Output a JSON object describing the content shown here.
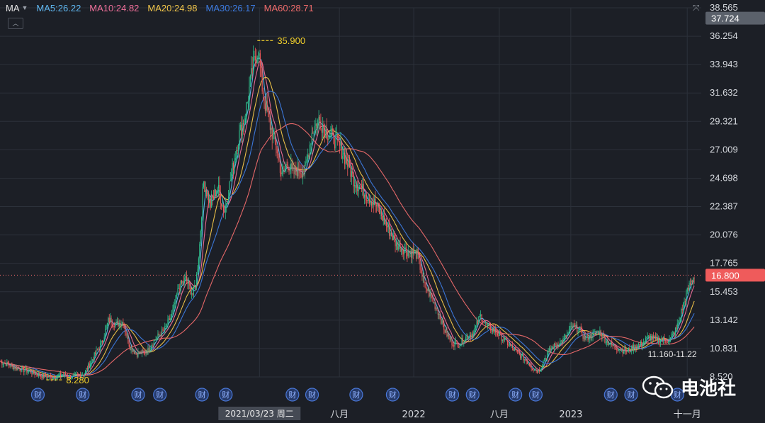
{
  "indicator": {
    "name": "MA",
    "items": [
      {
        "label": "MA5:26.22",
        "color": "#5fb7f0"
      },
      {
        "label": "MA10:24.82",
        "color": "#f06f9a"
      },
      {
        "label": "MA20:24.98",
        "color": "#f3c74a"
      },
      {
        "label": "MA30:26.17",
        "color": "#3d7be0"
      },
      {
        "label": "MA60:28.71",
        "color": "#ef6b6b"
      }
    ]
  },
  "watermark": {
    "text": "电池社",
    "icon": "wechat-icon"
  },
  "chart_data": {
    "type": "candlestick",
    "y_axis": {
      "ticks": [
        "38.565",
        "36.254",
        "33.943",
        "31.632",
        "29.321",
        "27.009",
        "24.698",
        "22.387",
        "20.076",
        "17.765",
        "15.453",
        "13.142",
        "10.831",
        "8.520"
      ],
      "range": [
        8.52,
        38.565
      ],
      "position": "right"
    },
    "y_tick_values": [
      38.565,
      36.254,
      33.943,
      31.632,
      29.321,
      27.009,
      24.698,
      22.387,
      20.076,
      17.765,
      15.453,
      13.142,
      10.831,
      8.52
    ],
    "price_tags": [
      {
        "label": "37.724",
        "value": 37.724,
        "style": "gray"
      },
      {
        "label": "16.800",
        "value": 16.8,
        "style": "red"
      }
    ],
    "x_axis": {
      "labels": [
        {
          "label": "2021/03/23 周二",
          "t": 0.37,
          "highlight": true
        },
        {
          "label": "八月",
          "t": 0.484
        },
        {
          "label": "2022",
          "t": 0.59
        },
        {
          "label": "八月",
          "t": 0.712
        },
        {
          "label": "2023",
          "t": 0.814
        },
        {
          "label": "十一月",
          "t": 0.98
        }
      ]
    },
    "annotations": [
      {
        "label": "35.900",
        "value": 35.9,
        "t": 0.367,
        "kind": "high"
      },
      {
        "label": "8.280",
        "value": 8.28,
        "t": 0.066,
        "kind": "low"
      },
      {
        "label": "11.160-11.22",
        "value": 11.16,
        "t": 0.94,
        "kind": "range"
      }
    ],
    "earnings_markers": {
      "label": "财",
      "t": [
        0.054,
        0.118,
        0.197,
        0.228,
        0.288,
        0.322,
        0.417,
        0.445,
        0.508,
        0.56,
        0.645,
        0.674,
        0.735,
        0.764,
        0.871,
        0.9,
        0.966
      ]
    },
    "close_series": [
      [
        0.0,
        9.8
      ],
      [
        0.02,
        9.3
      ],
      [
        0.04,
        9.0
      ],
      [
        0.06,
        8.6
      ],
      [
        0.075,
        8.5
      ],
      [
        0.09,
        8.7
      ],
      [
        0.105,
        8.5
      ],
      [
        0.12,
        8.8
      ],
      [
        0.13,
        9.8
      ],
      [
        0.145,
        11.3
      ],
      [
        0.155,
        13.2
      ],
      [
        0.165,
        12.8
      ],
      [
        0.175,
        13.0
      ],
      [
        0.185,
        11.0
      ],
      [
        0.195,
        10.4
      ],
      [
        0.21,
        10.6
      ],
      [
        0.22,
        11.5
      ],
      [
        0.235,
        12.4
      ],
      [
        0.245,
        13.5
      ],
      [
        0.255,
        15.8
      ],
      [
        0.265,
        16.5
      ],
      [
        0.275,
        15.2
      ],
      [
        0.28,
        16.5
      ],
      [
        0.285,
        19.5
      ],
      [
        0.29,
        24.5
      ],
      [
        0.3,
        22.5
      ],
      [
        0.31,
        24.0
      ],
      [
        0.32,
        22.0
      ],
      [
        0.33,
        25.0
      ],
      [
        0.34,
        28.0
      ],
      [
        0.35,
        30.0
      ],
      [
        0.36,
        33.5
      ],
      [
        0.368,
        35.4
      ],
      [
        0.375,
        31.5
      ],
      [
        0.385,
        29.0
      ],
      [
        0.395,
        27.0
      ],
      [
        0.402,
        24.8
      ],
      [
        0.41,
        26.0
      ],
      [
        0.418,
        25.0
      ],
      [
        0.425,
        25.5
      ],
      [
        0.435,
        25.2
      ],
      [
        0.445,
        28.5
      ],
      [
        0.455,
        29.5
      ],
      [
        0.465,
        28.5
      ],
      [
        0.475,
        28.0
      ],
      [
        0.485,
        27.2
      ],
      [
        0.495,
        26.0
      ],
      [
        0.505,
        24.5
      ],
      [
        0.52,
        23.5
      ],
      [
        0.535,
        22.6
      ],
      [
        0.55,
        21.0
      ],
      [
        0.565,
        19.3
      ],
      [
        0.58,
        18.8
      ],
      [
        0.595,
        18.5
      ],
      [
        0.605,
        16.0
      ],
      [
        0.615,
        15.0
      ],
      [
        0.625,
        13.8
      ],
      [
        0.635,
        12.2
      ],
      [
        0.645,
        11.3
      ],
      [
        0.655,
        11.2
      ],
      [
        0.665,
        11.8
      ],
      [
        0.675,
        12.1
      ],
      [
        0.685,
        13.5
      ],
      [
        0.695,
        12.6
      ],
      [
        0.705,
        12.3
      ],
      [
        0.72,
        11.5
      ],
      [
        0.735,
        10.6
      ],
      [
        0.75,
        9.9
      ],
      [
        0.76,
        9.2
      ],
      [
        0.768,
        9.0
      ],
      [
        0.775,
        9.8
      ],
      [
        0.785,
        10.8
      ],
      [
        0.795,
        11.2
      ],
      [
        0.805,
        11.6
      ],
      [
        0.815,
        12.6
      ],
      [
        0.825,
        12.4
      ],
      [
        0.835,
        11.6
      ],
      [
        0.845,
        12.0
      ],
      [
        0.855,
        12.2
      ],
      [
        0.865,
        11.4
      ],
      [
        0.875,
        11.0
      ],
      [
        0.885,
        10.8
      ],
      [
        0.895,
        10.6
      ],
      [
        0.905,
        11.0
      ],
      [
        0.915,
        11.2
      ],
      [
        0.925,
        11.8
      ],
      [
        0.935,
        11.5
      ],
      [
        0.945,
        11.6
      ],
      [
        0.955,
        11.5
      ],
      [
        0.965,
        12.5
      ],
      [
        0.975,
        14.5
      ],
      [
        0.982,
        15.8
      ],
      [
        0.99,
        16.8
      ]
    ],
    "moving_averages": [
      {
        "name": "MA5",
        "period": 5,
        "color": "#5fb7f0"
      },
      {
        "name": "MA10",
        "period": 10,
        "color": "#f06f9a"
      },
      {
        "name": "MA20",
        "period": 20,
        "color": "#f3c74a"
      },
      {
        "name": "MA30",
        "period": 30,
        "color": "#3d7be0"
      },
      {
        "name": "MA60",
        "period": 60,
        "color": "#ef6b6b"
      }
    ],
    "colors": {
      "up": "#2fbf8c",
      "down": "#ee5b5b",
      "grid": "#2c313a",
      "axis_text": "#d6d9de",
      "annotation": "#f2d02c",
      "current_line": "#ef6b6b"
    },
    "grid": true,
    "legend": "top-left"
  }
}
